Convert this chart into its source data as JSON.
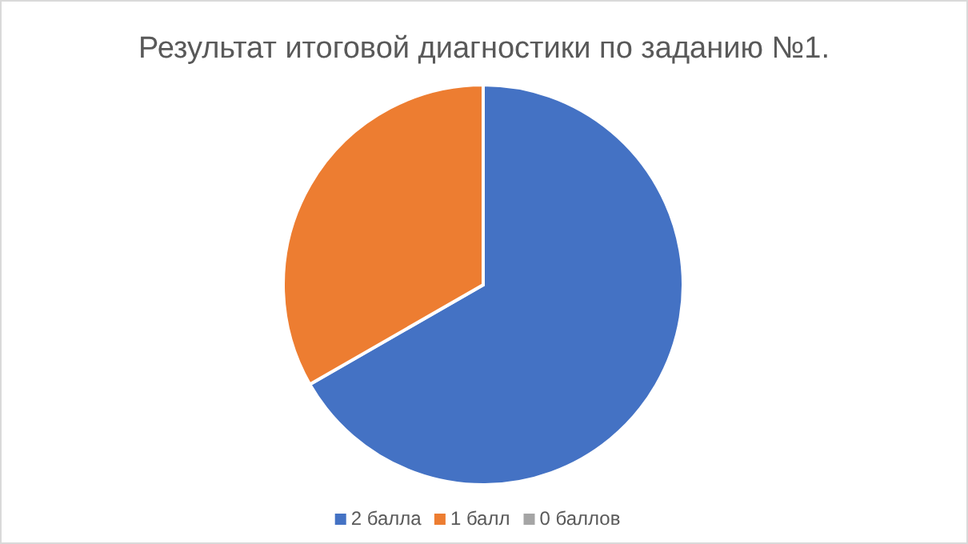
{
  "chart_data": {
    "type": "pie",
    "title": "Результат итоговой диагностики по заданию №1.",
    "categories": [
      "2 балла",
      "1 балл",
      "0 баллов"
    ],
    "values": [
      66.7,
      33.3,
      0
    ],
    "colors": [
      "#4472c4",
      "#ed7d31",
      "#a5a5a5"
    ],
    "legend": "bottom"
  }
}
